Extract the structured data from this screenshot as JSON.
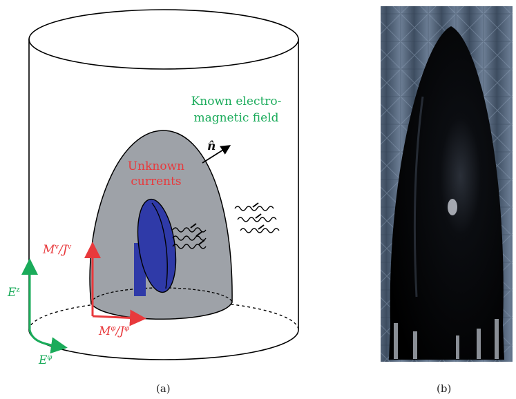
{
  "diagram": {
    "known_field_line1": "Known electro-",
    "known_field_line2": "magnetic field",
    "unknown_line1": "Unknown",
    "unknown_line2": "currents",
    "normal": "n̂",
    "Mv_main": "M",
    "Mv_sup": "v",
    "Jv_main": "/J",
    "Jv_sup": "v",
    "Mphi_main": "M",
    "Mphi_sup": "φ",
    "Jphi_main": "/J",
    "Jphi_sup": "φ",
    "Ez_main": "E",
    "Ez_sup": "z",
    "Ephi_main": "E",
    "Ephi_sup": "φ",
    "caption_a": "(a)",
    "caption_b": "(b)"
  },
  "colors": {
    "green": "#1aab5a",
    "red": "#e8393c",
    "dome": "#9ea2a8",
    "antenna": "#2f3aa8",
    "photo_bg": "#4d5f74",
    "radome": "#050608"
  }
}
